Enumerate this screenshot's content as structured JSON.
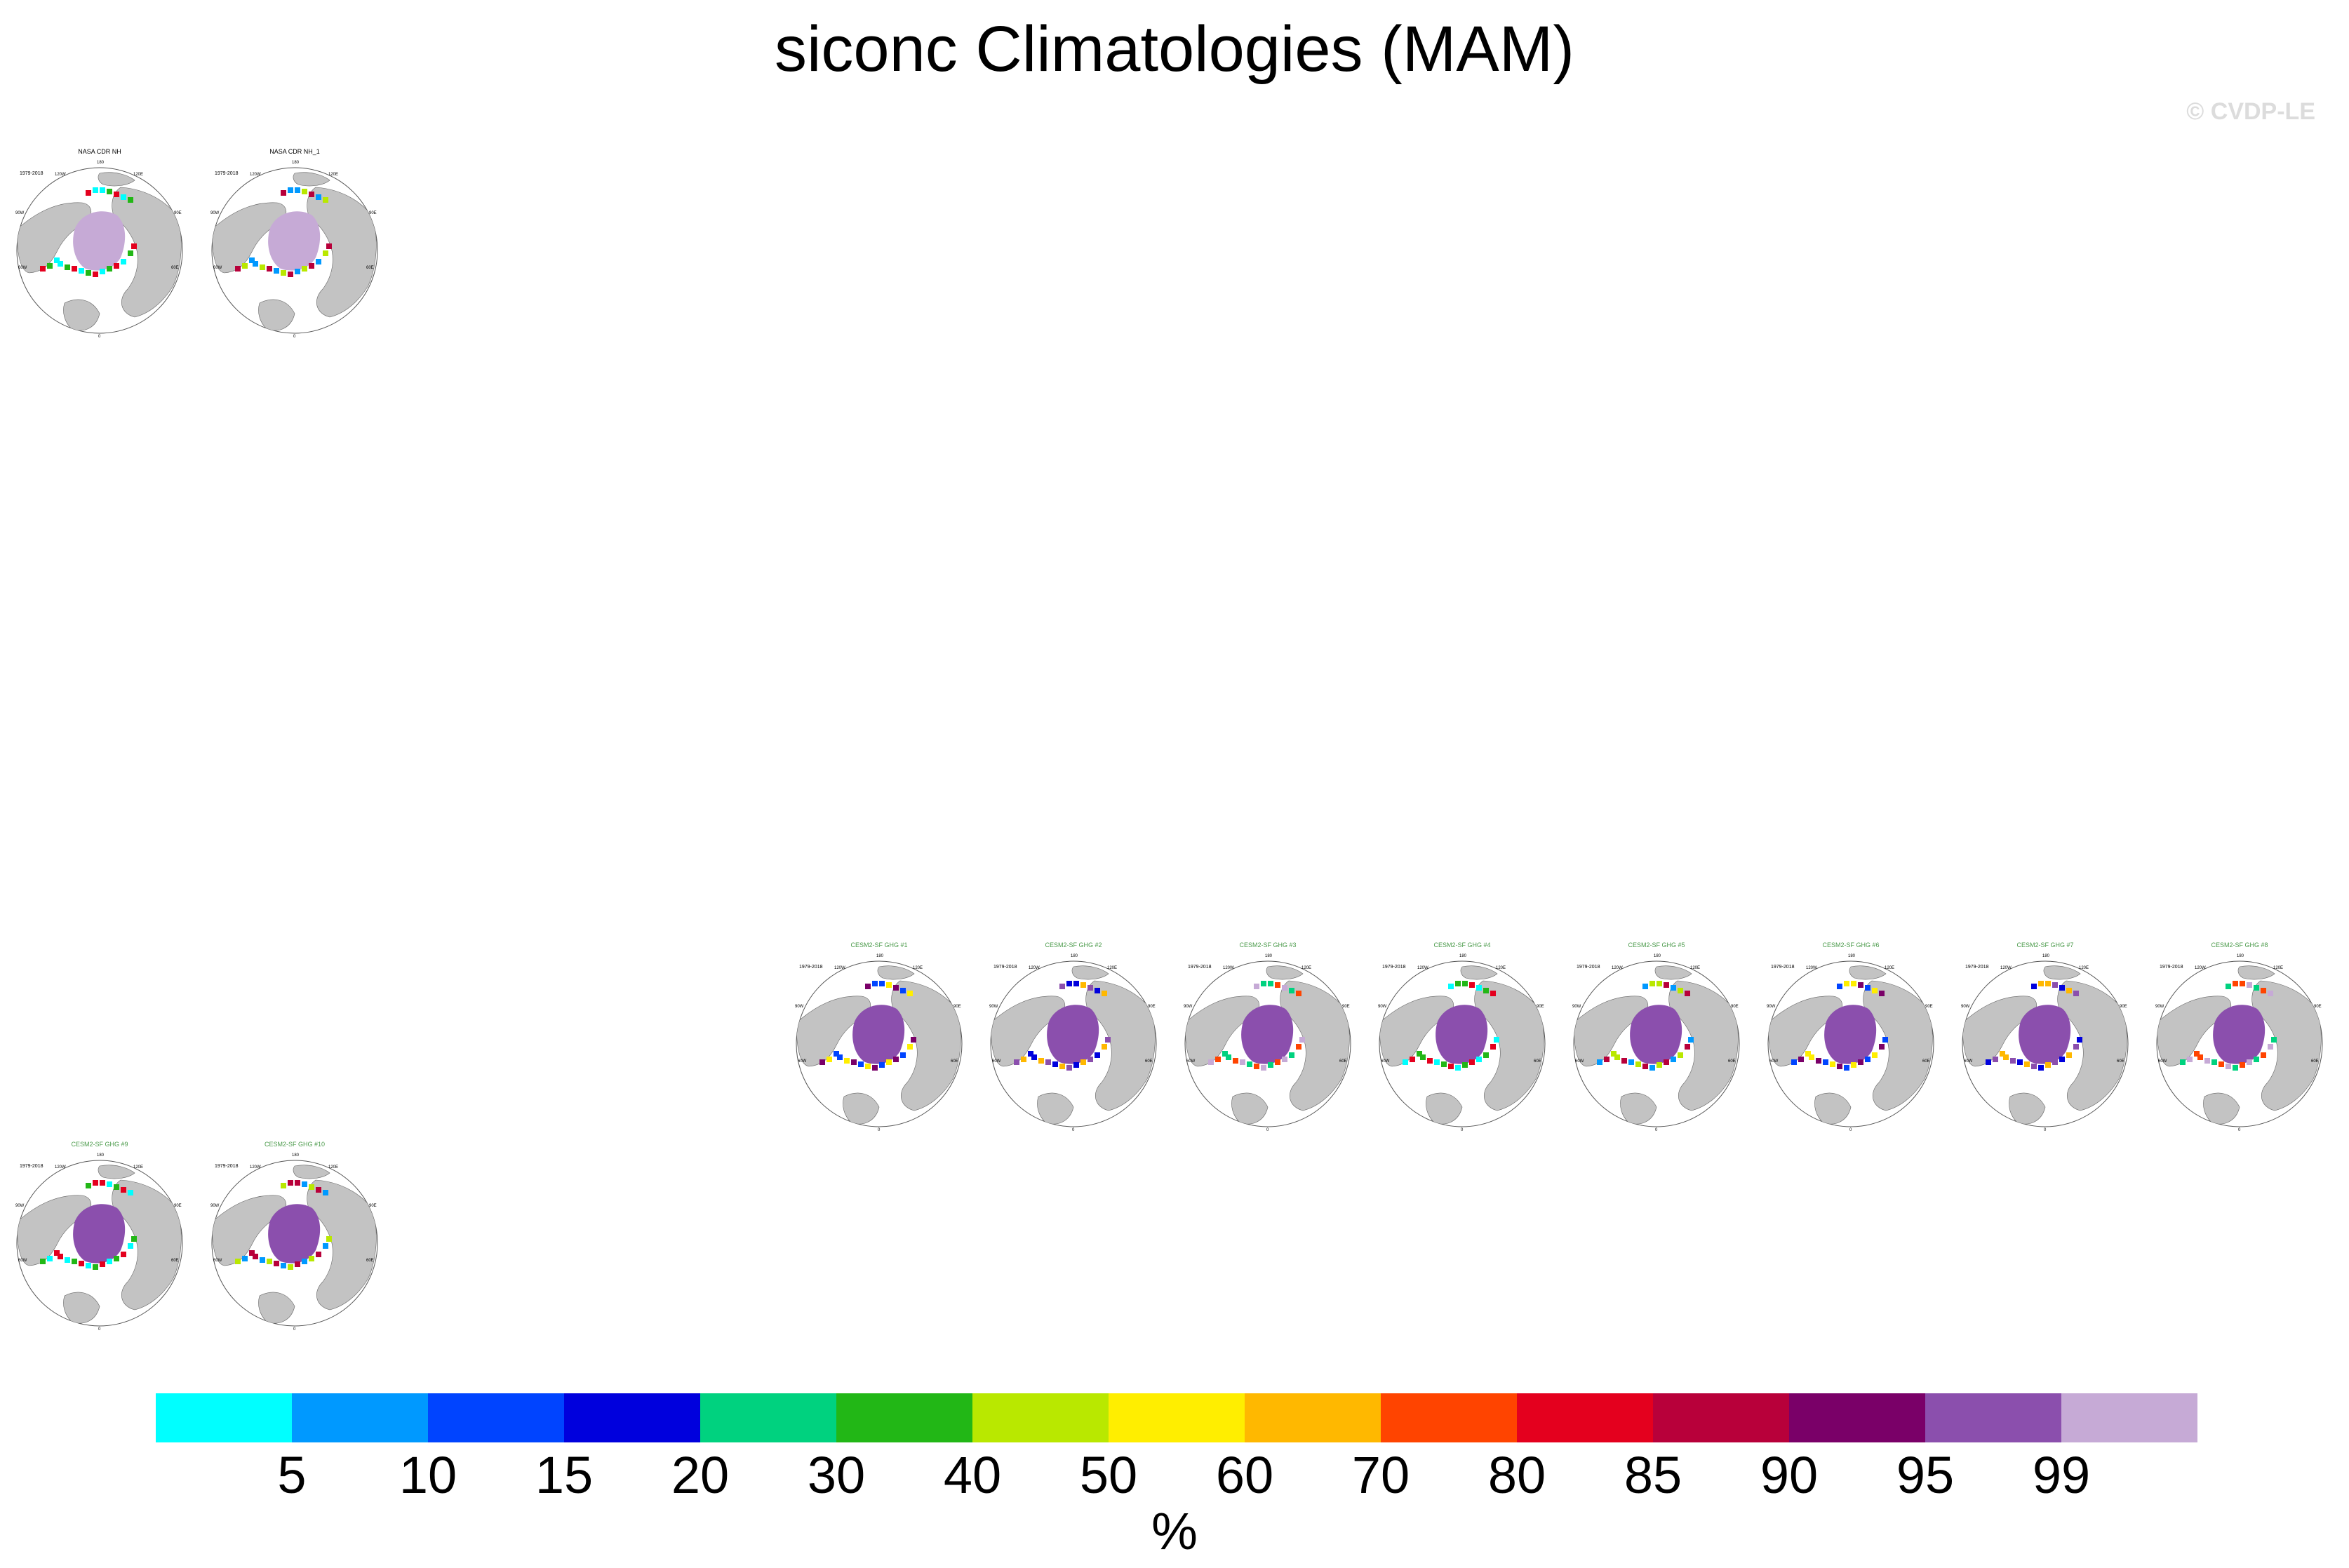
{
  "figure": {
    "title": "siconc Climatologies (MAM)",
    "copyright": "© CVDP-LE"
  },
  "axis_labels": {
    "top": "180",
    "tl": "120W",
    "tr": "120E",
    "ul": "90W",
    "ur": "90E",
    "ll": "60W",
    "lr": "60E",
    "bottom": "0"
  },
  "panels": [
    {
      "title": "NASA CDR NH",
      "period": "1979-2018",
      "kind": "obs"
    },
    {
      "title": "NASA CDR NH_1",
      "period": "1979-2018",
      "kind": "obs"
    },
    {
      "title": "CESM2-SF GHG #1",
      "period": "1979-2018",
      "kind": "model"
    },
    {
      "title": "CESM2-SF GHG #2",
      "period": "1979-2018",
      "kind": "model"
    },
    {
      "title": "CESM2-SF GHG #3",
      "period": "1979-2018",
      "kind": "model"
    },
    {
      "title": "CESM2-SF GHG #4",
      "period": "1979-2018",
      "kind": "model"
    },
    {
      "title": "CESM2-SF GHG #5",
      "period": "1979-2018",
      "kind": "model"
    },
    {
      "title": "CESM2-SF GHG #6",
      "period": "1979-2018",
      "kind": "model"
    },
    {
      "title": "CESM2-SF GHG #7",
      "period": "1979-2018",
      "kind": "model"
    },
    {
      "title": "CESM2-SF GHG #8",
      "period": "1979-2018",
      "kind": "model"
    },
    {
      "title": "CESM2-SF GHG #9",
      "period": "1979-2018",
      "kind": "model"
    },
    {
      "title": "CESM2-SF GHG #10",
      "period": "1979-2018",
      "kind": "model"
    }
  ],
  "colorbar": {
    "unit": "%",
    "ticks": [
      "5",
      "10",
      "15",
      "20",
      "30",
      "40",
      "50",
      "60",
      "70",
      "80",
      "85",
      "90",
      "95",
      "99"
    ],
    "colors": [
      "#00ffff",
      "#0099ff",
      "#0044ff",
      "#0000dd",
      "#00d27f",
      "#22b716",
      "#b9e800",
      "#ffee00",
      "#ffb800",
      "#ff4400",
      "#e4001e",
      "#b8003a",
      "#7a0068",
      "#8b4fad",
      "#c6aad6"
    ]
  }
}
